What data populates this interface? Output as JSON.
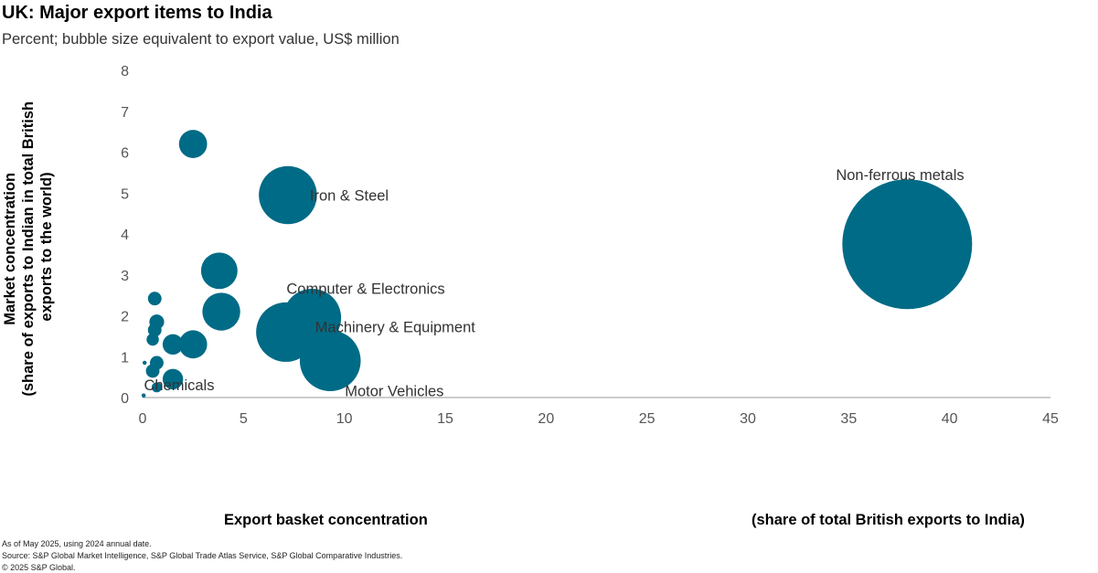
{
  "header": {
    "title": "UK: Major export items to India",
    "subtitle": "Percent; bubble size equivalent to export value, US$ million"
  },
  "chart_data": {
    "type": "scatter",
    "title": "UK: Major export items to India",
    "subtitle": "Percent; bubble size equivalent to export value, US$ million",
    "xlabel": "Export basket concentration",
    "xlabel_note": "(share of total British exports to India)",
    "ylabel_line1": "Market concentration",
    "ylabel_line2": "(share of exports to Indian in total British",
    "ylabel_line3": "exports to the world)",
    "xlim": [
      0,
      45
    ],
    "ylim": [
      0,
      8
    ],
    "xticks": [
      0,
      5,
      10,
      15,
      20,
      25,
      30,
      35,
      40,
      45
    ],
    "yticks": [
      0,
      1,
      2,
      3,
      4,
      5,
      6,
      7,
      8
    ],
    "bubble_color": "#006b86",
    "points": [
      {
        "label": "Non-ferrous metals",
        "x": 37.9,
        "y": 3.75,
        "size": 100
      },
      {
        "label": "Iron & Steel",
        "x": 7.2,
        "y": 4.95,
        "size": 20
      },
      {
        "label": "Computer & Electronics",
        "x": 8.4,
        "y": 1.95,
        "size": 20
      },
      {
        "label": "Machinery & Equipment",
        "x": 7.1,
        "y": 1.6,
        "size": 21
      },
      {
        "label": "Motor Vehicles",
        "x": 9.3,
        "y": 0.9,
        "size": 22
      },
      {
        "label": "Chemicals",
        "x": 0.7,
        "y": 0.25,
        "size": 0.6
      },
      {
        "label": "",
        "x": 2.5,
        "y": 6.2,
        "size": 4.7
      },
      {
        "label": "",
        "x": 3.8,
        "y": 3.1,
        "size": 7.9
      },
      {
        "label": "",
        "x": 3.9,
        "y": 2.1,
        "size": 8.5
      },
      {
        "label": "",
        "x": 2.5,
        "y": 1.3,
        "size": 4.7
      },
      {
        "label": "",
        "x": 1.5,
        "y": 1.3,
        "size": 2.5
      },
      {
        "label": "",
        "x": 1.5,
        "y": 0.45,
        "size": 2.5
      },
      {
        "label": "",
        "x": 0.6,
        "y": 2.42,
        "size": 1.1
      },
      {
        "label": "",
        "x": 0.7,
        "y": 1.85,
        "size": 1.3
      },
      {
        "label": "",
        "x": 0.6,
        "y": 1.65,
        "size": 1.1
      },
      {
        "label": "",
        "x": 0.5,
        "y": 1.42,
        "size": 0.9
      },
      {
        "label": "",
        "x": 0.7,
        "y": 0.85,
        "size": 1.1
      },
      {
        "label": "",
        "x": 0.5,
        "y": 0.65,
        "size": 1.1
      },
      {
        "label": "",
        "x": 0.1,
        "y": 0.85,
        "size": 0.1
      },
      {
        "label": "",
        "x": 0.05,
        "y": 0.05,
        "size": 0.1
      }
    ]
  },
  "footer": {
    "line1": "As of May 2025, using 2024 annual date.",
    "line2": "Source: S&P Global Market Intelligence, S&P Global Trade Atlas Service, S&P Global Comparative Industries.",
    "line3": "© 2025 S&P Global."
  }
}
